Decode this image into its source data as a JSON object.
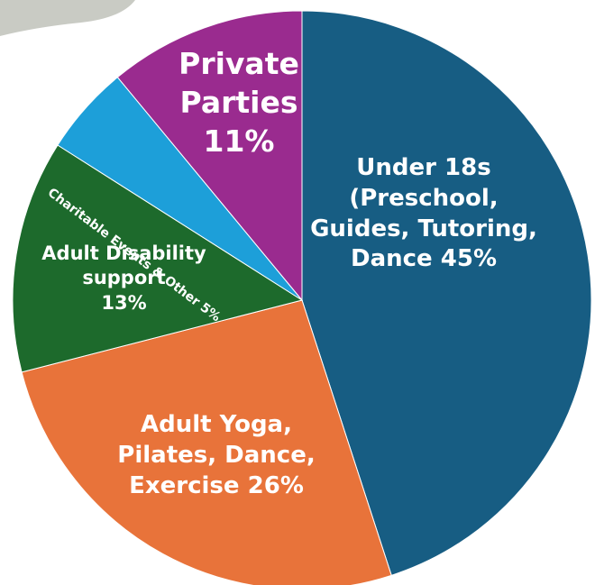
{
  "chart_data": {
    "type": "pie",
    "categories": [
      "Under 18s (Preschool, Guides, Tutoring, Dance",
      "Adult Yoga, Pilates, Dance, Exercise",
      "Adult Disability support",
      "Charitable Events & Other",
      "Private Parties"
    ],
    "values": [
      45,
      26,
      13,
      5,
      11
    ],
    "value_labels": [
      "45%",
      "26%",
      "13%",
      "5%",
      "11%"
    ],
    "colors": [
      "#175d83",
      "#e8733a",
      "#1d6a2c",
      "#1d9fd9",
      "#9a2b8f"
    ]
  }
}
